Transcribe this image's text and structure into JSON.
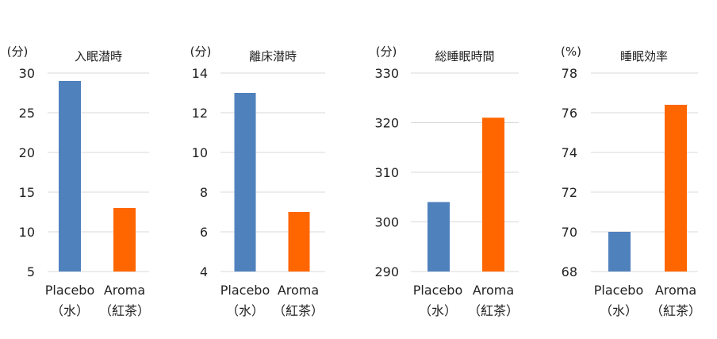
{
  "colors": {
    "placebo": "#4F81BD",
    "aroma": "#FF6600",
    "grid": "#D9D9D9"
  },
  "chart_data": [
    {
      "type": "bar",
      "title": "入眠潜時",
      "ylabel": "(分)",
      "categories": [
        [
          "Placebo",
          "（水）"
        ],
        [
          "Aroma",
          "（紅茶）"
        ]
      ],
      "values": [
        29,
        13
      ],
      "ylim": [
        5,
        30
      ],
      "yticks": [
        5,
        10,
        15,
        20,
        25,
        30
      ],
      "grid": true
    },
    {
      "type": "bar",
      "title": "離床潜時",
      "ylabel": "(分)",
      "categories": [
        [
          "Placebo",
          "（水）"
        ],
        [
          "Aroma",
          "（紅茶）"
        ]
      ],
      "values": [
        13,
        7
      ],
      "ylim": [
        4,
        14
      ],
      "yticks": [
        4,
        6,
        8,
        10,
        12,
        14
      ],
      "grid": true
    },
    {
      "type": "bar",
      "title": "総睡眠時間",
      "ylabel": "(分)",
      "categories": [
        [
          "Placebo",
          "（水）"
        ],
        [
          "Aroma",
          "（紅茶）"
        ]
      ],
      "values": [
        304,
        321
      ],
      "ylim": [
        290,
        330
      ],
      "yticks": [
        290,
        300,
        310,
        320,
        330
      ],
      "grid": true
    },
    {
      "type": "bar",
      "title": "睡眠効率",
      "ylabel": "(%)",
      "categories": [
        [
          "Placebo",
          "（水）"
        ],
        [
          "Aroma",
          "（紅茶）"
        ]
      ],
      "values": [
        70,
        76.4
      ],
      "ylim": [
        68,
        78
      ],
      "yticks": [
        68,
        70,
        72,
        74,
        76,
        78
      ],
      "grid": true
    }
  ]
}
